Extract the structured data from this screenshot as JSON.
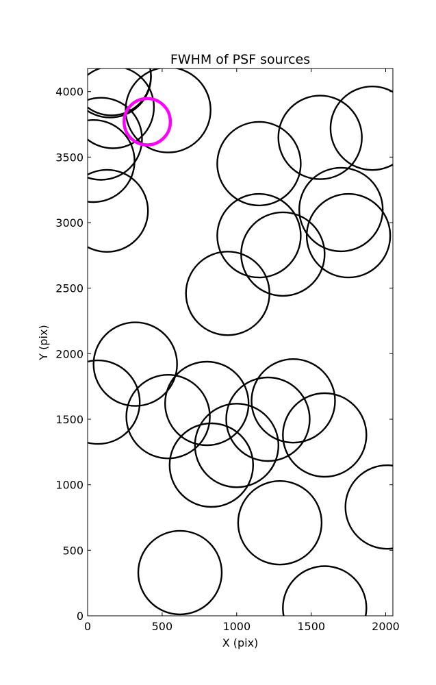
{
  "chart_data": {
    "type": "scatter",
    "title": "FWHM of PSF sources",
    "xlabel": "X (pix)",
    "ylabel": "Y (pix)",
    "xlim": [
      0,
      2048
    ],
    "ylim": [
      0,
      4176
    ],
    "x_ticks": [
      0,
      500,
      1000,
      1500,
      2000
    ],
    "y_ticks": [
      0,
      500,
      1000,
      1500,
      2000,
      2500,
      3000,
      3500,
      4000
    ],
    "grid": false,
    "legend": "none",
    "marker": "open circle sized by FWHM",
    "sources": [
      {
        "x": 150,
        "y": 4115,
        "r": 275
      },
      {
        "x": 160,
        "y": 4120,
        "r": 265
      },
      {
        "x": 170,
        "y": 3880,
        "r": 275
      },
      {
        "x": 540,
        "y": 3860,
        "r": 285
      },
      {
        "x": 90,
        "y": 3640,
        "r": 275
      },
      {
        "x": 40,
        "y": 3470,
        "r": 275
      },
      {
        "x": 1150,
        "y": 3450,
        "r": 280
      },
      {
        "x": 1560,
        "y": 3650,
        "r": 280
      },
      {
        "x": 1910,
        "y": 3720,
        "r": 280
      },
      {
        "x": 130,
        "y": 3090,
        "r": 275
      },
      {
        "x": 1150,
        "y": 2900,
        "r": 280
      },
      {
        "x": 1310,
        "y": 2760,
        "r": 280
      },
      {
        "x": 1700,
        "y": 3100,
        "r": 280
      },
      {
        "x": 1750,
        "y": 2900,
        "r": 280
      },
      {
        "x": 940,
        "y": 2460,
        "r": 280
      },
      {
        "x": 320,
        "y": 1920,
        "r": 280
      },
      {
        "x": 70,
        "y": 1630,
        "r": 280
      },
      {
        "x": 540,
        "y": 1520,
        "r": 280
      },
      {
        "x": 800,
        "y": 1620,
        "r": 280
      },
      {
        "x": 1380,
        "y": 1640,
        "r": 280
      },
      {
        "x": 1210,
        "y": 1500,
        "r": 280
      },
      {
        "x": 1000,
        "y": 1300,
        "r": 280
      },
      {
        "x": 1590,
        "y": 1380,
        "r": 280
      },
      {
        "x": 830,
        "y": 1150,
        "r": 280
      },
      {
        "x": 2010,
        "y": 830,
        "r": 280
      },
      {
        "x": 1290,
        "y": 710,
        "r": 280
      },
      {
        "x": 620,
        "y": 330,
        "r": 280
      },
      {
        "x": 1590,
        "y": 60,
        "r": 280
      }
    ],
    "highlight": {
      "x": 400,
      "y": 3770,
      "r": 155,
      "color": "#ff00ff"
    },
    "line_color": "#000000"
  }
}
